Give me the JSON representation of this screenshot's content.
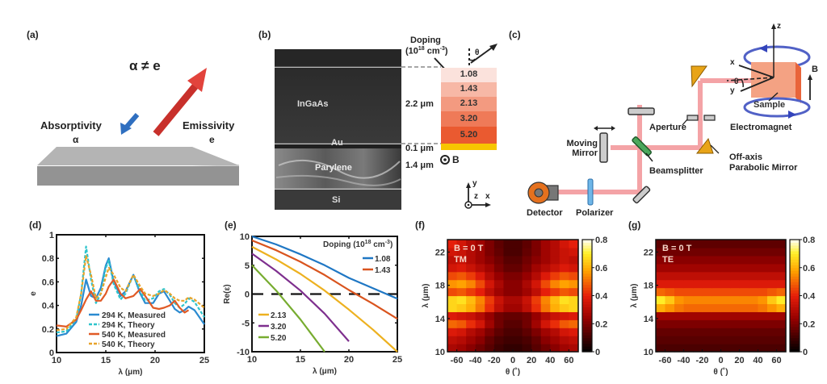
{
  "panel_a": {
    "label": "(a)",
    "title": "α ≠ e",
    "absorptivity": "Absorptivity",
    "absorptivity_symbol": "α",
    "emissivity": "Emissivity",
    "emissivity_symbol": "e",
    "colors": {
      "slab": "#9a9a9a",
      "absorb_arrow": "#2f6fc0",
      "emit_arrow": "#d23a32"
    }
  },
  "panel_b": {
    "label": "(b)",
    "layers": {
      "ingaas": "InGaAs",
      "au": "Au",
      "parylene": "Parylene",
      "si": "Si"
    },
    "thickness": {
      "ingaas": "2.2 μm",
      "au": "0.1 μm",
      "parylene": "1.4 μm"
    },
    "doping_title": "Doping",
    "doping_unit_base": "(10",
    "doping_unit_exp": "18",
    "doping_unit_mid": " cm",
    "doping_unit_exp2": "-3",
    "doping_unit_end": ")",
    "theta": "θ",
    "doping_levels": [
      "1.08",
      "1.43",
      "2.13",
      "3.20",
      "5.20"
    ],
    "doping_colors": [
      "#fbe2dc",
      "#f7b8a6",
      "#f39a80",
      "#ef7a58",
      "#ea5a30"
    ],
    "au_color": "#f7c600",
    "b_field": "B",
    "axes": {
      "y": "y",
      "z": "z",
      "x": "x"
    }
  },
  "panel_c": {
    "label": "(c)",
    "labels": {
      "moving_mirror_1": "Moving",
      "moving_mirror_2": "Mirror",
      "aperture": "Aperture",
      "beamsplitter": "Beamsplitter",
      "off_axis_1": "Off-axis",
      "off_axis_2": "Parabolic Mirror",
      "detector": "Detector",
      "polarizer": "Polarizer",
      "sample": "Sample",
      "electromagnet": "Electromagnet",
      "b_field": "B",
      "x": "x",
      "y": "y",
      "z": "z",
      "theta": "θ"
    },
    "colors": {
      "beam": "#f4a0a4",
      "mirror": "#e8a417",
      "coil": "#4b5fc8",
      "sample": "#f0927a",
      "detector": "#e5711e"
    }
  },
  "chart_data": [
    {
      "panel": "(d)",
      "type": "line",
      "title": "",
      "xlabel": "λ (μm)",
      "ylabel": "e",
      "xlim": [
        10,
        25
      ],
      "ylim": [
        0,
        1
      ],
      "xticks": [
        "10",
        "15",
        "20",
        "25"
      ],
      "yticks": [
        "0",
        "0.2",
        "0.4",
        "0.6",
        "0.8",
        "1"
      ],
      "legend_position": "bottom-center",
      "x": [
        10,
        11,
        12,
        12.5,
        13,
        13.5,
        14,
        14.5,
        15,
        15.3,
        15.8,
        16.5,
        17,
        17.8,
        18.5,
        19,
        19.8,
        20.4,
        20.9,
        21.5,
        22,
        22.5,
        23,
        23.4,
        24,
        25
      ],
      "series": [
        {
          "name": "294 K, Measured",
          "color": "#2a8ad0",
          "dash": "solid",
          "values": [
            0.14,
            0.16,
            0.26,
            0.4,
            0.62,
            0.48,
            0.46,
            0.55,
            0.74,
            0.8,
            0.6,
            0.48,
            0.52,
            0.66,
            0.5,
            0.42,
            0.42,
            0.5,
            0.52,
            0.44,
            0.37,
            0.34,
            0.36,
            0.39,
            0.36,
            0.24
          ]
        },
        {
          "name": "294 K, Theory",
          "color": "#2ec4cc",
          "dash": "dashed",
          "values": [
            0.17,
            0.18,
            0.28,
            0.5,
            0.9,
            0.62,
            0.42,
            0.5,
            0.72,
            0.78,
            0.58,
            0.45,
            0.5,
            0.66,
            0.52,
            0.44,
            0.46,
            0.52,
            0.54,
            0.49,
            0.42,
            0.38,
            0.41,
            0.46,
            0.43,
            0.3
          ]
        },
        {
          "name": "540 K, Measured",
          "color": "#e05a26",
          "dash": "solid",
          "values": [
            0.23,
            0.22,
            0.28,
            0.36,
            0.45,
            0.52,
            0.44,
            0.44,
            0.5,
            0.56,
            0.62,
            0.5,
            0.46,
            0.48,
            0.54,
            0.48,
            0.38,
            0.37,
            0.38,
            0.4,
            0.44,
            0.38,
            0.34,
            0.36,
            null,
            null
          ]
        },
        {
          "name": "540 K, Theory",
          "color": "#e8a32a",
          "dash": "dashed",
          "values": [
            0.19,
            0.2,
            0.3,
            0.5,
            0.82,
            0.66,
            0.46,
            0.5,
            0.64,
            0.72,
            0.66,
            0.55,
            0.52,
            0.66,
            0.56,
            0.5,
            0.48,
            0.5,
            0.53,
            0.5,
            0.46,
            0.44,
            0.44,
            0.47,
            0.45,
            0.38
          ]
        }
      ]
    },
    {
      "panel": "(e)",
      "type": "line",
      "title": "",
      "xlabel": "λ (μm)",
      "ylabel": "Re(ε)",
      "xlim": [
        10,
        25
      ],
      "ylim": [
        -10,
        10
      ],
      "xticks": [
        "10",
        "15",
        "20",
        "25"
      ],
      "yticks": [
        "-10",
        "-5",
        "0",
        "5",
        "10"
      ],
      "legend_title_base": "Doping (10",
      "legend_title_exp": "18",
      "legend_title_mid": " cm",
      "legend_title_exp2": "-3",
      "legend_title_end": ")",
      "legend_position": "top-right / bottom-left",
      "zero_line": 0,
      "x": [
        10,
        12.5,
        15,
        17.5,
        20,
        22.5,
        25
      ],
      "series": [
        {
          "name": "1.08",
          "color": "#1f77c4",
          "values": [
            10,
            8.6,
            6.9,
            5.0,
            2.8,
            1.0,
            -0.8
          ]
        },
        {
          "name": "1.43",
          "color": "#d9541e",
          "values": [
            9.3,
            7.6,
            5.6,
            3.3,
            0.7,
            -1.7,
            -4.3
          ]
        },
        {
          "name": "2.13",
          "color": "#edb120",
          "values": [
            8.2,
            6.0,
            3.5,
            0.6,
            -2.7,
            -6.2,
            -10
          ]
        },
        {
          "name": "3.20",
          "color": "#7e2f8e",
          "values": [
            7.0,
            4.0,
            0.6,
            -3.4,
            -8.2,
            null,
            null
          ]
        },
        {
          "name": "5.20",
          "color": "#77ac30",
          "values": [
            5.0,
            0.6,
            -4.4,
            -10,
            null,
            null,
            null
          ]
        }
      ]
    },
    {
      "panel": "(f)",
      "type": "heatmap",
      "annotation_1": "B = 0 T",
      "annotation_2": "TM",
      "xlabel": "θ (˚)",
      "ylabel": "λ (μm)",
      "xlim": [
        -70,
        70
      ],
      "ylim": [
        10,
        23.5
      ],
      "xticks": [
        "-60",
        "-40",
        "-20",
        "0",
        "20",
        "40",
        "60"
      ],
      "yticks": [
        "10",
        "14",
        "18",
        "22"
      ],
      "colorbar_ticks": [
        "0",
        "0.2",
        "0.4",
        "0.6",
        "0.8"
      ],
      "clim": [
        0,
        0.8
      ],
      "theta": [
        -65,
        -55,
        -45,
        -35,
        -25,
        -15,
        -5,
        5,
        15,
        25,
        35,
        45,
        55,
        65
      ],
      "wavelength": [
        10.5,
        11.5,
        12.5,
        13.5,
        14.5,
        15.5,
        16.5,
        17.5,
        18.5,
        19.5,
        20.5,
        21.5,
        22.5,
        23.3
      ],
      "values": [
        [
          0.28,
          0.26,
          0.22,
          0.18,
          0.14,
          0.1,
          0.08,
          0.08,
          0.1,
          0.14,
          0.18,
          0.22,
          0.26,
          0.28
        ],
        [
          0.32,
          0.3,
          0.26,
          0.22,
          0.16,
          0.12,
          0.1,
          0.1,
          0.12,
          0.16,
          0.22,
          0.26,
          0.3,
          0.32
        ],
        [
          0.38,
          0.36,
          0.3,
          0.26,
          0.2,
          0.15,
          0.12,
          0.12,
          0.15,
          0.2,
          0.26,
          0.3,
          0.36,
          0.38
        ],
        [
          0.5,
          0.48,
          0.42,
          0.36,
          0.26,
          0.18,
          0.14,
          0.14,
          0.18,
          0.26,
          0.36,
          0.42,
          0.48,
          0.5
        ],
        [
          0.38,
          0.36,
          0.34,
          0.3,
          0.24,
          0.18,
          0.16,
          0.16,
          0.18,
          0.24,
          0.3,
          0.34,
          0.36,
          0.38
        ],
        [
          0.66,
          0.64,
          0.6,
          0.52,
          0.42,
          0.32,
          0.26,
          0.26,
          0.32,
          0.42,
          0.52,
          0.6,
          0.64,
          0.66
        ],
        [
          0.66,
          0.68,
          0.62,
          0.54,
          0.44,
          0.34,
          0.28,
          0.28,
          0.34,
          0.44,
          0.54,
          0.62,
          0.68,
          0.66
        ],
        [
          0.46,
          0.48,
          0.44,
          0.4,
          0.32,
          0.26,
          0.22,
          0.22,
          0.26,
          0.32,
          0.4,
          0.44,
          0.48,
          0.46
        ],
        [
          0.56,
          0.58,
          0.54,
          0.46,
          0.36,
          0.28,
          0.22,
          0.22,
          0.28,
          0.36,
          0.46,
          0.54,
          0.58,
          0.56
        ],
        [
          0.46,
          0.48,
          0.44,
          0.38,
          0.3,
          0.24,
          0.2,
          0.2,
          0.24,
          0.3,
          0.38,
          0.44,
          0.48,
          0.46
        ],
        [
          0.36,
          0.38,
          0.34,
          0.3,
          0.26,
          0.2,
          0.16,
          0.16,
          0.2,
          0.26,
          0.3,
          0.34,
          0.38,
          0.36
        ],
        [
          0.32,
          0.34,
          0.3,
          0.26,
          0.22,
          0.18,
          0.14,
          0.14,
          0.18,
          0.22,
          0.26,
          0.3,
          0.34,
          0.32
        ],
        [
          0.36,
          0.34,
          0.3,
          0.26,
          0.2,
          0.16,
          0.12,
          0.12,
          0.16,
          0.2,
          0.26,
          0.3,
          0.34,
          0.36
        ],
        [
          0.4,
          0.36,
          0.3,
          0.26,
          0.2,
          0.15,
          0.12,
          0.12,
          0.15,
          0.2,
          0.26,
          0.3,
          0.36,
          0.4
        ]
      ]
    },
    {
      "panel": "(g)",
      "type": "heatmap",
      "annotation_1": "B = 0 T",
      "annotation_2": "TE",
      "xlabel": "θ (˚)",
      "ylabel": "λ (μm)",
      "xlim": [
        -70,
        70
      ],
      "ylim": [
        10,
        23.5
      ],
      "xticks": [
        "-60",
        "-40",
        "-20",
        "0",
        "20",
        "40",
        "60"
      ],
      "yticks": [
        "10",
        "14",
        "18",
        "22"
      ],
      "colorbar_ticks": [
        "0",
        "0.2",
        "0.4",
        "0.6",
        "0.8"
      ],
      "clim": [
        0,
        0.8
      ],
      "theta": [
        -65,
        -55,
        -45,
        -35,
        -25,
        -15,
        -5,
        5,
        15,
        25,
        35,
        45,
        55,
        65
      ],
      "wavelength": [
        10.5,
        11.5,
        12.5,
        13.5,
        14.5,
        15.5,
        16.5,
        17.5,
        18.5,
        19.5,
        20.5,
        21.5,
        22.5,
        23.3
      ],
      "values": [
        [
          0.12,
          0.12,
          0.12,
          0.12,
          0.12,
          0.12,
          0.12,
          0.12,
          0.12,
          0.12,
          0.12,
          0.12,
          0.12,
          0.12
        ],
        [
          0.14,
          0.14,
          0.14,
          0.14,
          0.14,
          0.14,
          0.14,
          0.14,
          0.14,
          0.14,
          0.14,
          0.14,
          0.14,
          0.14
        ],
        [
          0.16,
          0.16,
          0.16,
          0.16,
          0.16,
          0.16,
          0.16,
          0.16,
          0.16,
          0.16,
          0.16,
          0.16,
          0.16,
          0.16
        ],
        [
          0.2,
          0.2,
          0.2,
          0.2,
          0.2,
          0.2,
          0.2,
          0.2,
          0.2,
          0.2,
          0.2,
          0.2,
          0.2,
          0.2
        ],
        [
          0.26,
          0.26,
          0.26,
          0.26,
          0.26,
          0.26,
          0.26,
          0.26,
          0.26,
          0.26,
          0.26,
          0.26,
          0.26,
          0.26
        ],
        [
          0.6,
          0.56,
          0.52,
          0.5,
          0.5,
          0.5,
          0.5,
          0.5,
          0.5,
          0.5,
          0.5,
          0.52,
          0.56,
          0.6
        ],
        [
          0.7,
          0.64,
          0.56,
          0.54,
          0.54,
          0.54,
          0.54,
          0.54,
          0.54,
          0.54,
          0.54,
          0.56,
          0.64,
          0.7
        ],
        [
          0.5,
          0.48,
          0.46,
          0.46,
          0.46,
          0.46,
          0.46,
          0.46,
          0.46,
          0.46,
          0.46,
          0.46,
          0.48,
          0.5
        ],
        [
          0.38,
          0.38,
          0.38,
          0.38,
          0.38,
          0.38,
          0.38,
          0.38,
          0.38,
          0.38,
          0.38,
          0.38,
          0.38,
          0.38
        ],
        [
          0.32,
          0.32,
          0.32,
          0.32,
          0.32,
          0.32,
          0.32,
          0.32,
          0.32,
          0.32,
          0.32,
          0.32,
          0.32,
          0.32
        ],
        [
          0.26,
          0.26,
          0.26,
          0.26,
          0.26,
          0.26,
          0.26,
          0.26,
          0.26,
          0.26,
          0.26,
          0.26,
          0.26,
          0.26
        ],
        [
          0.22,
          0.22,
          0.22,
          0.22,
          0.22,
          0.22,
          0.22,
          0.22,
          0.22,
          0.22,
          0.22,
          0.22,
          0.22,
          0.22
        ],
        [
          0.18,
          0.18,
          0.18,
          0.18,
          0.18,
          0.18,
          0.18,
          0.18,
          0.18,
          0.18,
          0.18,
          0.18,
          0.18,
          0.18
        ],
        [
          0.15,
          0.15,
          0.15,
          0.15,
          0.15,
          0.15,
          0.15,
          0.15,
          0.15,
          0.15,
          0.15,
          0.15,
          0.15,
          0.15
        ]
      ]
    }
  ]
}
